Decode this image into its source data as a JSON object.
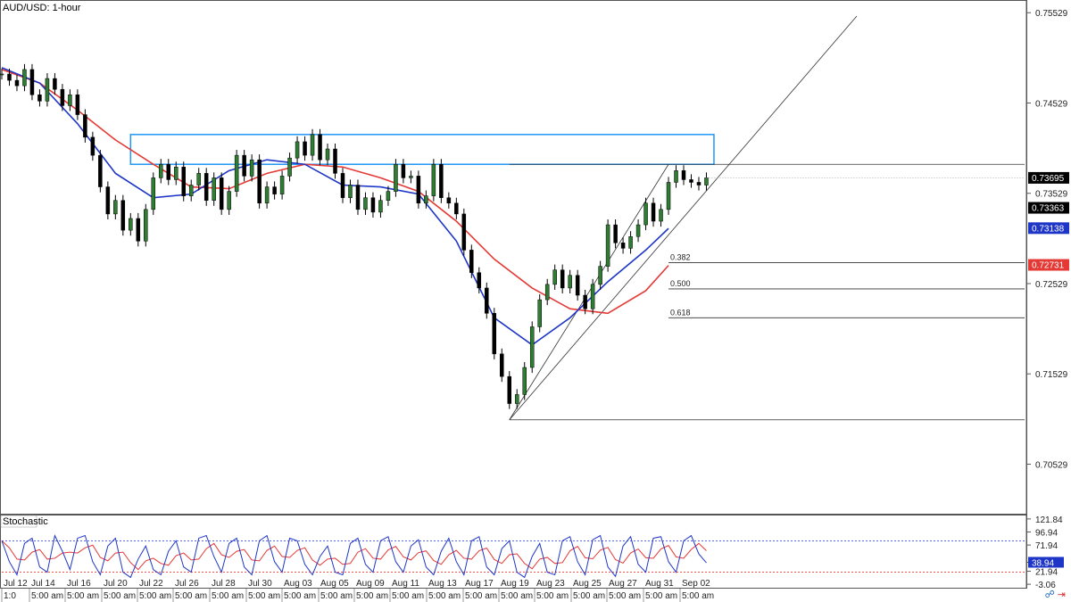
{
  "chart_data": [
    {
      "type": "line",
      "title": "AUD/USD: 1-hour",
      "xlabel": "",
      "ylabel": "",
      "ylim": [
        0.7,
        0.7565
      ],
      "y_ticks": [
        "0.75529",
        "0.74529",
        "0.73529",
        "0.72529",
        "0.71529",
        "0.70529"
      ],
      "y_tick_values": [
        0.75529,
        0.74529,
        0.73529,
        0.72529,
        0.71529,
        0.70529
      ],
      "x_date_labels": [
        "Jul 12",
        "Jul 14",
        "Jul 16",
        "Jul 20",
        "Jul 22",
        "Jul 26",
        "Jul 28",
        "Jul 30",
        "Aug 03",
        "Aug 05",
        "Aug 09",
        "Aug 11",
        "Aug 13",
        "Aug 17",
        "Aug 19",
        "Aug 23",
        "Aug 25",
        "Aug 27",
        "Aug 31",
        "Sep 02"
      ],
      "x_time_labels": [
        "1:0",
        "5:00 am",
        "5:00 am",
        "5:00 am",
        "5:00 am",
        "5:00 am",
        "5:00 am",
        "5:00 am",
        "5:00 am",
        "5:00 am",
        "5:00 am",
        "5:00 am",
        "5:00 am",
        "5:00 am",
        "5:00 am",
        "5:00 am",
        "5:00 am",
        "5:00 am",
        "5:00 am",
        "5:00 am"
      ],
      "price_series": {
        "color": "#000000",
        "x": [
          0,
          2,
          4,
          6,
          8,
          10,
          12,
          14,
          16,
          18,
          20,
          22,
          24,
          26,
          28,
          30,
          32,
          34,
          36,
          38,
          40,
          42,
          44,
          46,
          48,
          50,
          52,
          54,
          56,
          58,
          60,
          62,
          64,
          66,
          68,
          70,
          72,
          74,
          76,
          78,
          80,
          82,
          84,
          86,
          88,
          90,
          92,
          94,
          96,
          98,
          100,
          102,
          104,
          106,
          108,
          110,
          112,
          114,
          116,
          118,
          120,
          122,
          124,
          126,
          128,
          130,
          132,
          134,
          136,
          138,
          140,
          142,
          144,
          146,
          148,
          150,
          152,
          154,
          156,
          158,
          160,
          162,
          164,
          166,
          168,
          170,
          172,
          174,
          176,
          178,
          180,
          182,
          184,
          186
        ],
        "values": [
          0.7485,
          0.7478,
          0.7472,
          0.749,
          0.7462,
          0.7455,
          0.748,
          0.7468,
          0.745,
          0.7462,
          0.744,
          0.7415,
          0.7395,
          0.736,
          0.733,
          0.7345,
          0.7312,
          0.7325,
          0.73,
          0.7335,
          0.737,
          0.7385,
          0.7368,
          0.7382,
          0.735,
          0.7362,
          0.7375,
          0.7345,
          0.737,
          0.7335,
          0.7355,
          0.7395,
          0.7372,
          0.739,
          0.7342,
          0.736,
          0.7352,
          0.7372,
          0.7392,
          0.741,
          0.7395,
          0.7418,
          0.739,
          0.7402,
          0.7375,
          0.7348,
          0.7362,
          0.7335,
          0.7348,
          0.7332,
          0.7345,
          0.7355,
          0.7385,
          0.737,
          0.7372,
          0.7342,
          0.735,
          0.7385,
          0.7348,
          0.7342,
          0.733,
          0.729,
          0.7265,
          0.7248,
          0.722,
          0.7175,
          0.715,
          0.712,
          0.713,
          0.716,
          0.7205,
          0.7235,
          0.7252,
          0.7268,
          0.7248,
          0.7262,
          0.724,
          0.7225,
          0.7252,
          0.7272,
          0.7318,
          0.7298,
          0.7292,
          0.7305,
          0.7318,
          0.7342,
          0.7322,
          0.7335,
          0.7365,
          0.7378,
          0.7368,
          0.7365,
          0.7362,
          0.737
        ]
      },
      "series": [
        {
          "name": "red-ma",
          "color": "#e53935",
          "x": [
            0,
            10,
            20,
            30,
            40,
            50,
            60,
            70,
            80,
            90,
            100,
            110,
            120,
            130,
            140,
            150,
            160,
            170,
            176
          ],
          "values": [
            0.749,
            0.7475,
            0.7445,
            0.7412,
            0.7385,
            0.736,
            0.7358,
            0.7375,
            0.7385,
            0.7382,
            0.737,
            0.7355,
            0.7322,
            0.728,
            0.7248,
            0.7225,
            0.722,
            0.7245,
            0.7273
          ]
        },
        {
          "name": "blue-ma",
          "color": "#1e36c8",
          "x": [
            0,
            10,
            20,
            30,
            40,
            50,
            60,
            70,
            80,
            90,
            100,
            110,
            120,
            130,
            140,
            150,
            160,
            170,
            176
          ],
          "values": [
            0.7492,
            0.7475,
            0.743,
            0.7375,
            0.7348,
            0.7352,
            0.7378,
            0.739,
            0.7385,
            0.7362,
            0.736,
            0.7352,
            0.73,
            0.7215,
            0.7185,
            0.7215,
            0.7255,
            0.729,
            0.7314
          ]
        }
      ],
      "x_range": [
        0,
        270
      ],
      "current_price": "0.73695",
      "price_labels": [
        {
          "text": "0.73695",
          "value": 0.73695,
          "bg": "#000000"
        },
        {
          "text": "0.73363",
          "value": 0.73363,
          "bg": "#000000"
        },
        {
          "text": "0.73138",
          "value": 0.73138,
          "bg": "#1e36c8"
        },
        {
          "text": "0.72731",
          "value": 0.72731,
          "bg": "#e53935"
        }
      ],
      "rectangle": {
        "x0": 34,
        "x1": 188,
        "y0": 0.7385,
        "y1": 0.7418,
        "color": "#2196f3"
      },
      "fib_levels": [
        {
          "label": "0.382",
          "value": 0.7276
        },
        {
          "label": "0.500",
          "value": 0.7247
        },
        {
          "label": "0.618",
          "value": 0.7215
        }
      ],
      "fib_high": 0.7385,
      "fib_low": 0.7102,
      "fib_x_start": 176,
      "grid": false
    },
    {
      "type": "line",
      "title": "Stochastic",
      "y_ticks": [
        "121.84",
        "96.94",
        "71.94",
        "38.94",
        "21.94",
        "-3.06"
      ],
      "y_tick_values": [
        121.84,
        96.94,
        71.94,
        38.94,
        21.94,
        -3.06
      ],
      "ylim": [
        -8,
        125
      ],
      "overbought": 80,
      "oversold": 20,
      "current_value": "38.94",
      "values": [
        80,
        40,
        15,
        75,
        85,
        30,
        20,
        90,
        60,
        25,
        85,
        90,
        40,
        15,
        70,
        85,
        20,
        10,
        45,
        70,
        25,
        15,
        60,
        80,
        30,
        20,
        85,
        90,
        50,
        20,
        75,
        85,
        30,
        15,
        80,
        90,
        40,
        20,
        85,
        80,
        35,
        15,
        50,
        70,
        20,
        15,
        75,
        85,
        35,
        20,
        80,
        88,
        40,
        20,
        70,
        82,
        30,
        15,
        60,
        85,
        40,
        15,
        80,
        88,
        30,
        15,
        65,
        80,
        20,
        10,
        50,
        75,
        20,
        15,
        80,
        88,
        40,
        15,
        82,
        90,
        30,
        12,
        70,
        88,
        35,
        20,
        85,
        88,
        40,
        20,
        80,
        90,
        55,
        38
      ],
      "series": [
        {
          "name": "%K",
          "color": "#1e36c8"
        },
        {
          "name": "%D",
          "color": "#e53935"
        }
      ]
    }
  ]
}
